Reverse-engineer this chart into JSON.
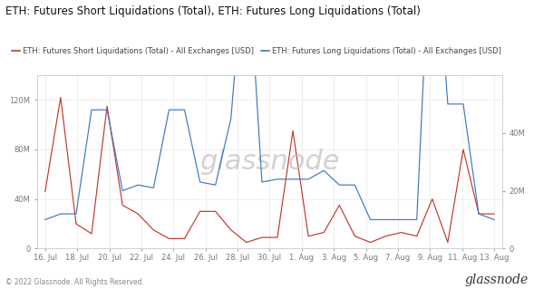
{
  "title": "ETH: Futures Short Liquidations (Total), ETH: Futures Long Liquidations (Total)",
  "legend_short": "ETH: Futures Short Liquidations (Total) - All Exchanges [USD]",
  "legend_long": "ETH: Futures Long Liquidations (Total) - All Exchanges [USD]",
  "footer_left": "© 2022 Glassnode. All Rights Reserved.",
  "watermark": "glassnode",
  "x_labels": [
    "16. Jul",
    "18. Jul",
    "20. Jul",
    "22. Jul",
    "24. Jul",
    "26. Jul",
    "28. Jul",
    "30. Jul",
    "1. Aug",
    "3. Aug",
    "5. Aug",
    "7. Aug",
    "9. Aug",
    "11. Aug",
    "13. Aug"
  ],
  "short_values": [
    46,
    122,
    20,
    12,
    115,
    35,
    28,
    15,
    8,
    8,
    30,
    30,
    15,
    5,
    9,
    9,
    95,
    10,
    13,
    35,
    10,
    5,
    10,
    13,
    10,
    40,
    5,
    80,
    28,
    28
  ],
  "long_values": [
    10,
    12,
    12,
    48,
    48,
    20,
    22,
    21,
    48,
    48,
    23,
    22,
    45,
    110,
    23,
    24,
    24,
    24,
    27,
    22,
    22,
    10,
    10,
    10,
    10,
    125,
    50,
    50,
    12,
    10
  ],
  "short_color": "#c0392b",
  "long_color": "#3a7abf",
  "background_color": "#ffffff",
  "grid_color": "#e8e8e8",
  "left_ylim": [
    0,
    140
  ],
  "right_ylim": [
    0,
    60
  ],
  "left_yticks": [
    0,
    40,
    80,
    120
  ],
  "right_yticks": [
    0,
    20,
    40
  ],
  "title_fontsize": 8.5,
  "legend_fontsize": 6,
  "tick_fontsize": 6,
  "watermark_fontsize": 22,
  "footer_fontsize": 5.5,
  "glassnode_footer_fontsize": 10
}
